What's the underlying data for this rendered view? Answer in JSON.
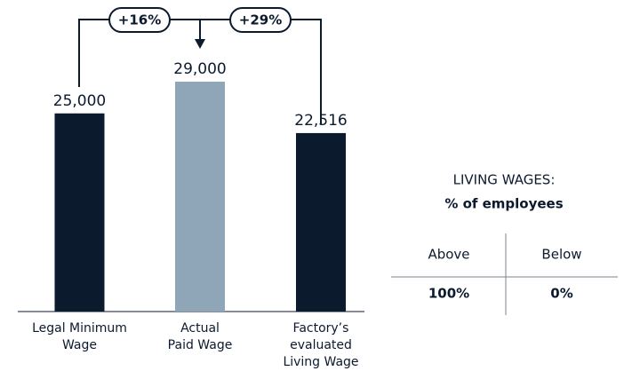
{
  "chart_data": {
    "type": "bar",
    "categories": [
      [
        "Legal Minimum",
        "Wage"
      ],
      [
        "Actual",
        "Paid Wage"
      ],
      [
        "Factory’s",
        "evaluated",
        "Living Wage"
      ]
    ],
    "values": [
      25000,
      29000,
      22516
    ],
    "value_labels": [
      "25,000",
      "29,000",
      "22,516"
    ],
    "colors": [
      "#0c1a2e",
      "#8fa6b9",
      "#0c1a2e"
    ],
    "annotations": [
      "+16%",
      "+29%"
    ]
  },
  "table": {
    "title": [
      "LIVING WAGES:",
      "% of employees"
    ],
    "columns": [
      "Above",
      "Below"
    ],
    "rows": [
      [
        "100%",
        "0%"
      ]
    ]
  }
}
